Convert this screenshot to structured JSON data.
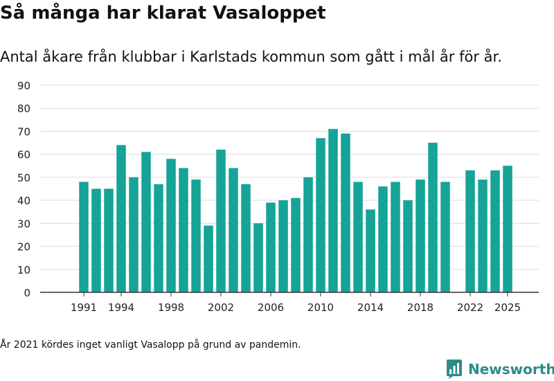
{
  "title": "Så många har klarat Vasaloppet",
  "subtitle": "Antal åkare från klubbar i Karlstads kommun som gått i mål år för år.",
  "footnote": "År 2021 kördes inget vanligt Vasalopp på grund av pandemin.",
  "brand": {
    "name": "Newsworthy",
    "icon": "newsworthy-logo-icon",
    "color": "#2c8c88"
  },
  "chart_data": {
    "type": "bar",
    "categories": [
      1991,
      1992,
      1993,
      1994,
      1995,
      1996,
      1997,
      1998,
      1999,
      2000,
      2001,
      2002,
      2003,
      2004,
      2005,
      2006,
      2007,
      2008,
      2009,
      2010,
      2011,
      2012,
      2013,
      2014,
      2015,
      2016,
      2017,
      2018,
      2019,
      2020,
      2022,
      2023,
      2024,
      2025
    ],
    "values": [
      48,
      45,
      45,
      64,
      50,
      61,
      47,
      58,
      54,
      49,
      29,
      62,
      54,
      47,
      30,
      39,
      40,
      41,
      50,
      67,
      71,
      69,
      48,
      36,
      46,
      48,
      40,
      49,
      65,
      48,
      53,
      49,
      53,
      55
    ],
    "xticks": [
      1991,
      1994,
      1998,
      2002,
      2006,
      2010,
      2014,
      2018,
      2022,
      2025
    ],
    "yticks": [
      0,
      10,
      20,
      30,
      40,
      50,
      60,
      70,
      80,
      90
    ],
    "ylim": [
      0,
      90
    ],
    "xlim": [
      1987.5,
      2027.5
    ],
    "bar_color": "#16a398",
    "grid": true
  }
}
